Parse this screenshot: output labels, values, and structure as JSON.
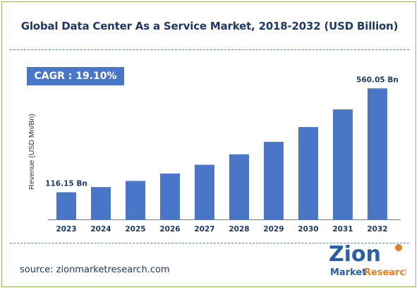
{
  "header": {
    "title": "Global Data Center As a Service Market, 2018-2032 (USD Billion)"
  },
  "cagr": {
    "label": "CAGR :  19.10%"
  },
  "source": {
    "text": "source: zionmarketresearch.com"
  },
  "logo": {
    "word1": "Zion",
    "word2": "Market",
    "word3": "Research"
  },
  "colors": {
    "bar": "#4a76c7",
    "title": "#1f3864",
    "axis": "#5b7fa8",
    "logo_blue": "#2a5fa8",
    "logo_orange": "#e87d1e"
  },
  "chart_data": {
    "type": "bar",
    "title": "Global Data Center As a Service Market, 2018-2032 (USD Billion)",
    "xlabel": "",
    "ylabel": "Revenue (USD Mn/Bn)",
    "categories": [
      "2023",
      "2024",
      "2025",
      "2026",
      "2027",
      "2028",
      "2029",
      "2030",
      "2031",
      "2032"
    ],
    "values": [
      116.15,
      138.3,
      164.7,
      196.2,
      233.7,
      278.3,
      331.5,
      394.8,
      470.2,
      560.05
    ],
    "data_labels": [
      {
        "index": 0,
        "text": "116.15 Bn"
      },
      {
        "index": 9,
        "text": "560.05 Bn"
      }
    ],
    "ylim": [
      0,
      600
    ],
    "grid": false,
    "legend": "none"
  }
}
